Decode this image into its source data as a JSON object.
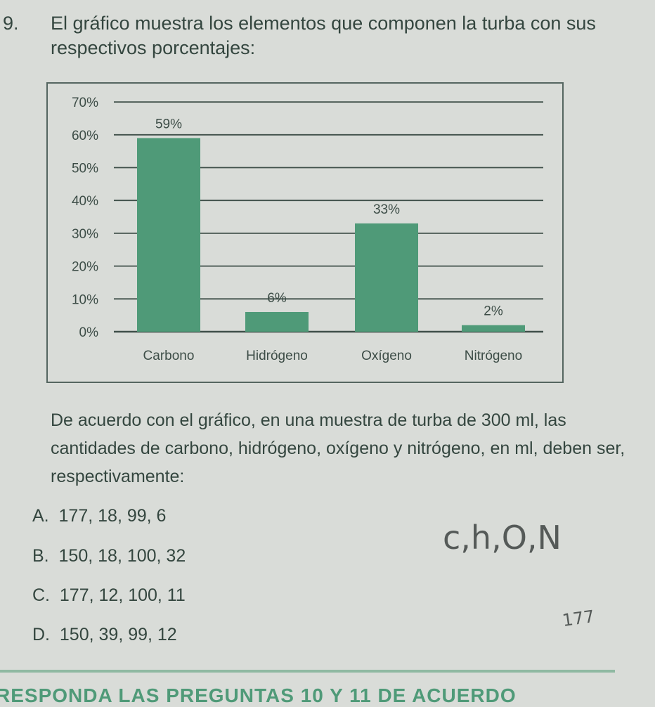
{
  "question": {
    "number": "9.",
    "text": "El gráfico muestra los elementos que componen la turba con sus respectivos porcentajes:",
    "body": "De acuerdo con el gráfico, en una muestra de turba de 300 ml, las cantidades de carbono, hidrógeno, oxígeno y nitrógeno, en ml, deben ser, respectivamente:",
    "options": [
      {
        "letter": "A.",
        "text": "177, 18, 99, 6"
      },
      {
        "letter": "B.",
        "text": "150, 18, 100, 32"
      },
      {
        "letter": "C.",
        "text": "177, 12, 100, 11"
      },
      {
        "letter": "D.",
        "text": "150, 39, 99, 12"
      }
    ]
  },
  "handwriting": {
    "note1": "c,h,O,N",
    "note2": "177"
  },
  "footer": "RESPONDA LAS PREGUNTAS 10 Y 11 DE ACUERDO",
  "colors": {
    "bar": "#4f9a78",
    "text": "#34463f",
    "accent": "#4f9a78"
  },
  "chart_data": {
    "type": "bar",
    "categories": [
      "Carbono",
      "Hidrógeno",
      "Oxígeno",
      "Nitrógeno"
    ],
    "values": [
      59,
      6,
      33,
      2
    ],
    "data_labels": [
      "59%",
      "6%",
      "33%",
      "2%"
    ],
    "yticks": [
      "0%",
      "10%",
      "20%",
      "30%",
      "40%",
      "50%",
      "60%",
      "70%"
    ],
    "ylim": [
      0,
      70
    ],
    "grid": true,
    "legend": "none"
  }
}
